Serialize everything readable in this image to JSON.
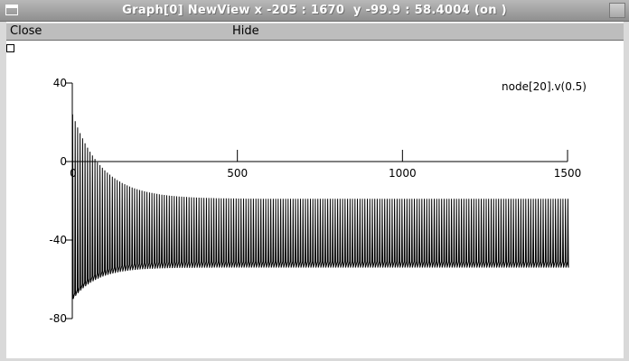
{
  "window": {
    "title": "Graph[0] NewView x -205 : 1670  y -99.9 : 58.4004 (on )"
  },
  "menu": {
    "close_label": "Close",
    "hide_label": "Hide"
  },
  "colors": {
    "trace": "#000000",
    "menubar": "#bdbdbd",
    "titlebar": "#9e9e9e"
  },
  "chart_data": {
    "type": "line",
    "title": "",
    "xlabel": "",
    "ylabel": "",
    "xlim": [
      -205,
      1670
    ],
    "ylim": [
      -99.9,
      58.4004
    ],
    "x_ticks": [
      0,
      500,
      1000,
      1500
    ],
    "y_ticks": [
      40,
      0,
      -40,
      -80
    ],
    "grid": false,
    "series": [
      {
        "name": "node[20].v(0.5)",
        "x_start": 0,
        "x_end": 1500,
        "spike_period": 7.5,
        "peak_initial": 24,
        "peak_final": -19,
        "trough_initial": -70,
        "trough_final": -54,
        "decay_tau": 90
      }
    ]
  }
}
